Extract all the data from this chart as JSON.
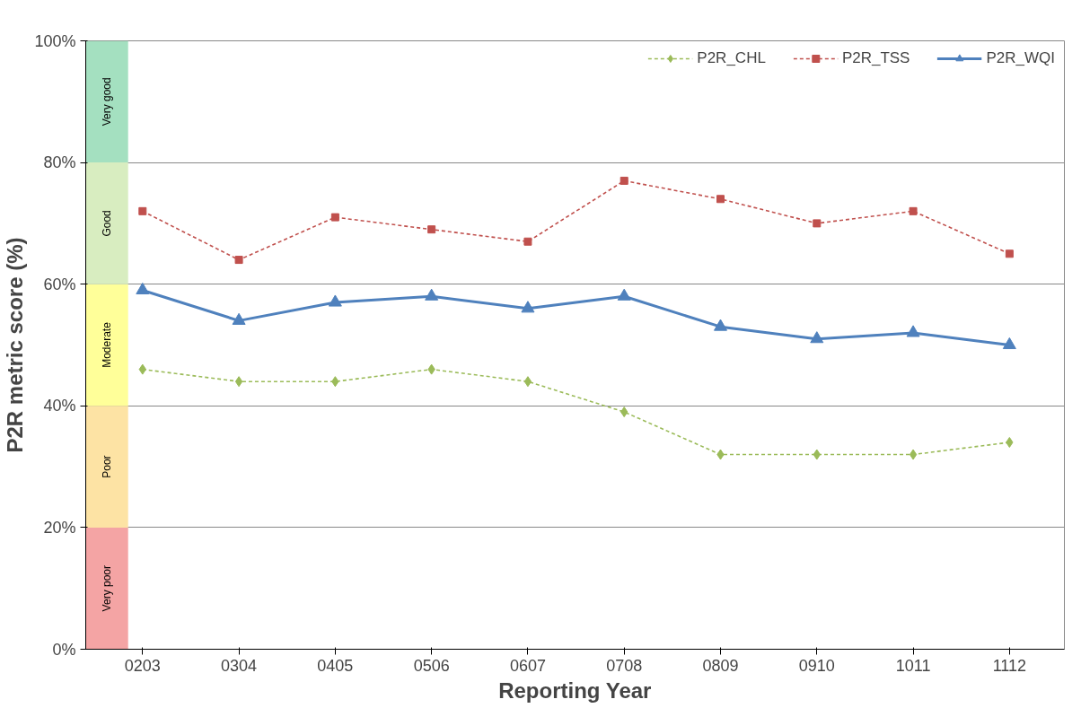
{
  "chart_data": {
    "type": "line",
    "xlabel": "Reporting Year",
    "ylabel": "P2R metric score (%)",
    "categories": [
      "0203",
      "0304",
      "0405",
      "0506",
      "0607",
      "0708",
      "0809",
      "0910",
      "1011",
      "1112"
    ],
    "series": [
      {
        "name": "P2R_CHL",
        "color": "#9bbb59",
        "marker": "diamond",
        "line_style": "dashed",
        "values": [
          46,
          44,
          44,
          46,
          44,
          39,
          32,
          32,
          32,
          34
        ]
      },
      {
        "name": "P2R_TSS",
        "color": "#c0504d",
        "marker": "square",
        "line_style": "dashed",
        "values": [
          72,
          64,
          71,
          69,
          67,
          77,
          74,
          70,
          72,
          65
        ]
      },
      {
        "name": "P2R_WQI",
        "color": "#4f81bd",
        "marker": "triangle",
        "line_style": "solid",
        "values": [
          59,
          54,
          57,
          58,
          56,
          58,
          53,
          51,
          52,
          50
        ]
      }
    ],
    "ylim": [
      0,
      100
    ],
    "yticks": [
      {
        "value": 0,
        "label": "0%"
      },
      {
        "value": 20,
        "label": "20%"
      },
      {
        "value": 40,
        "label": "40%"
      },
      {
        "value": 60,
        "label": "60%"
      },
      {
        "value": 80,
        "label": "80%"
      },
      {
        "value": 100,
        "label": "100%"
      }
    ],
    "bands": [
      {
        "axis": "y",
        "from": 0,
        "to": 20,
        "label": "Very poor",
        "color": "#f4a4a4"
      },
      {
        "axis": "y",
        "from": 20,
        "to": 40,
        "label": "Poor",
        "color": "#fde3a4"
      },
      {
        "axis": "y",
        "from": 40,
        "to": 60,
        "label": "Moderate",
        "color": "#ffff99"
      },
      {
        "axis": "y",
        "from": 60,
        "to": 80,
        "label": "Good",
        "color": "#d8edc0"
      },
      {
        "axis": "y",
        "from": 80,
        "to": 100,
        "label": "Very good",
        "color": "#a4e0c0"
      }
    ],
    "grid": "y",
    "legend": "top right"
  }
}
